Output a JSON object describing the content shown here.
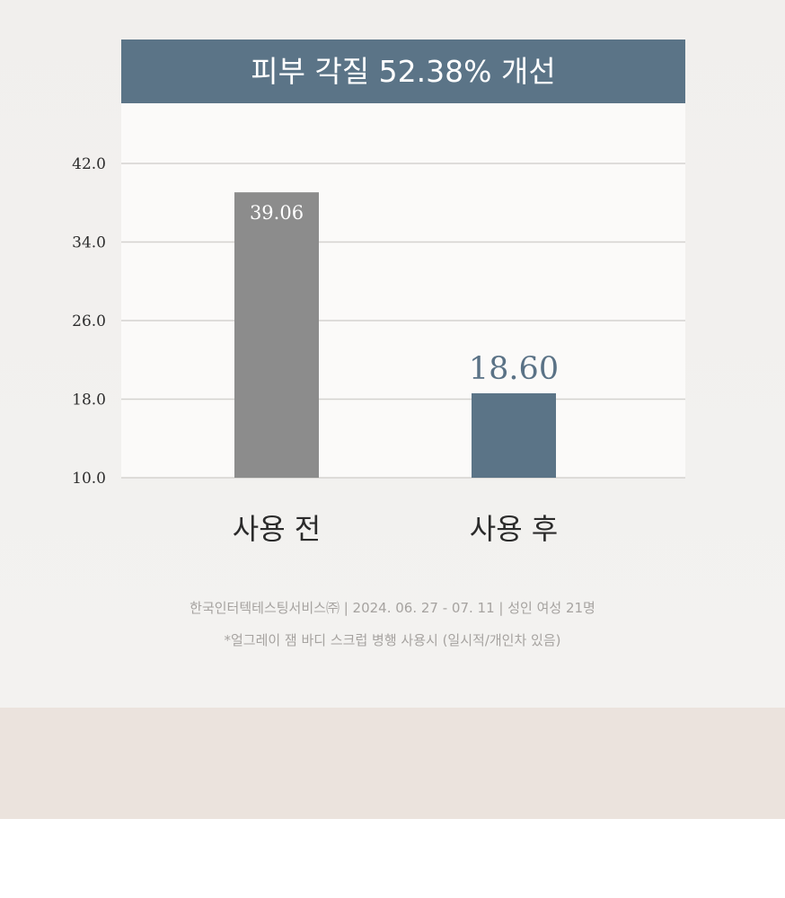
{
  "chart_data": {
    "type": "bar",
    "title": "피부 각질 52.38% 개선",
    "categories": [
      "사용 전",
      "사용 후"
    ],
    "values": [
      39.06,
      18.6
    ],
    "value_labels": [
      "39.06",
      "18.60"
    ],
    "yticks": [
      "42.0",
      "34.0",
      "26.0",
      "18.0",
      "10.0"
    ],
    "ylim": [
      10,
      42
    ],
    "grid": true,
    "xlabel": "",
    "ylabel": ""
  },
  "colors": {
    "header": "#5b7487",
    "bar_before": "#8c8c8c",
    "bar_after": "#5b7487",
    "plot_bg": "#fbfaf9",
    "grid": "#d4d2cf"
  },
  "notes": {
    "source": "한국인터텍테스팅서비스㈜ | 2024. 06. 27 - 07. 11 | 성인 여성 21명",
    "footnote": "*얼그레이 잼 바디 스크럽 병행 사용시 (일시적/개인차 있음)"
  }
}
